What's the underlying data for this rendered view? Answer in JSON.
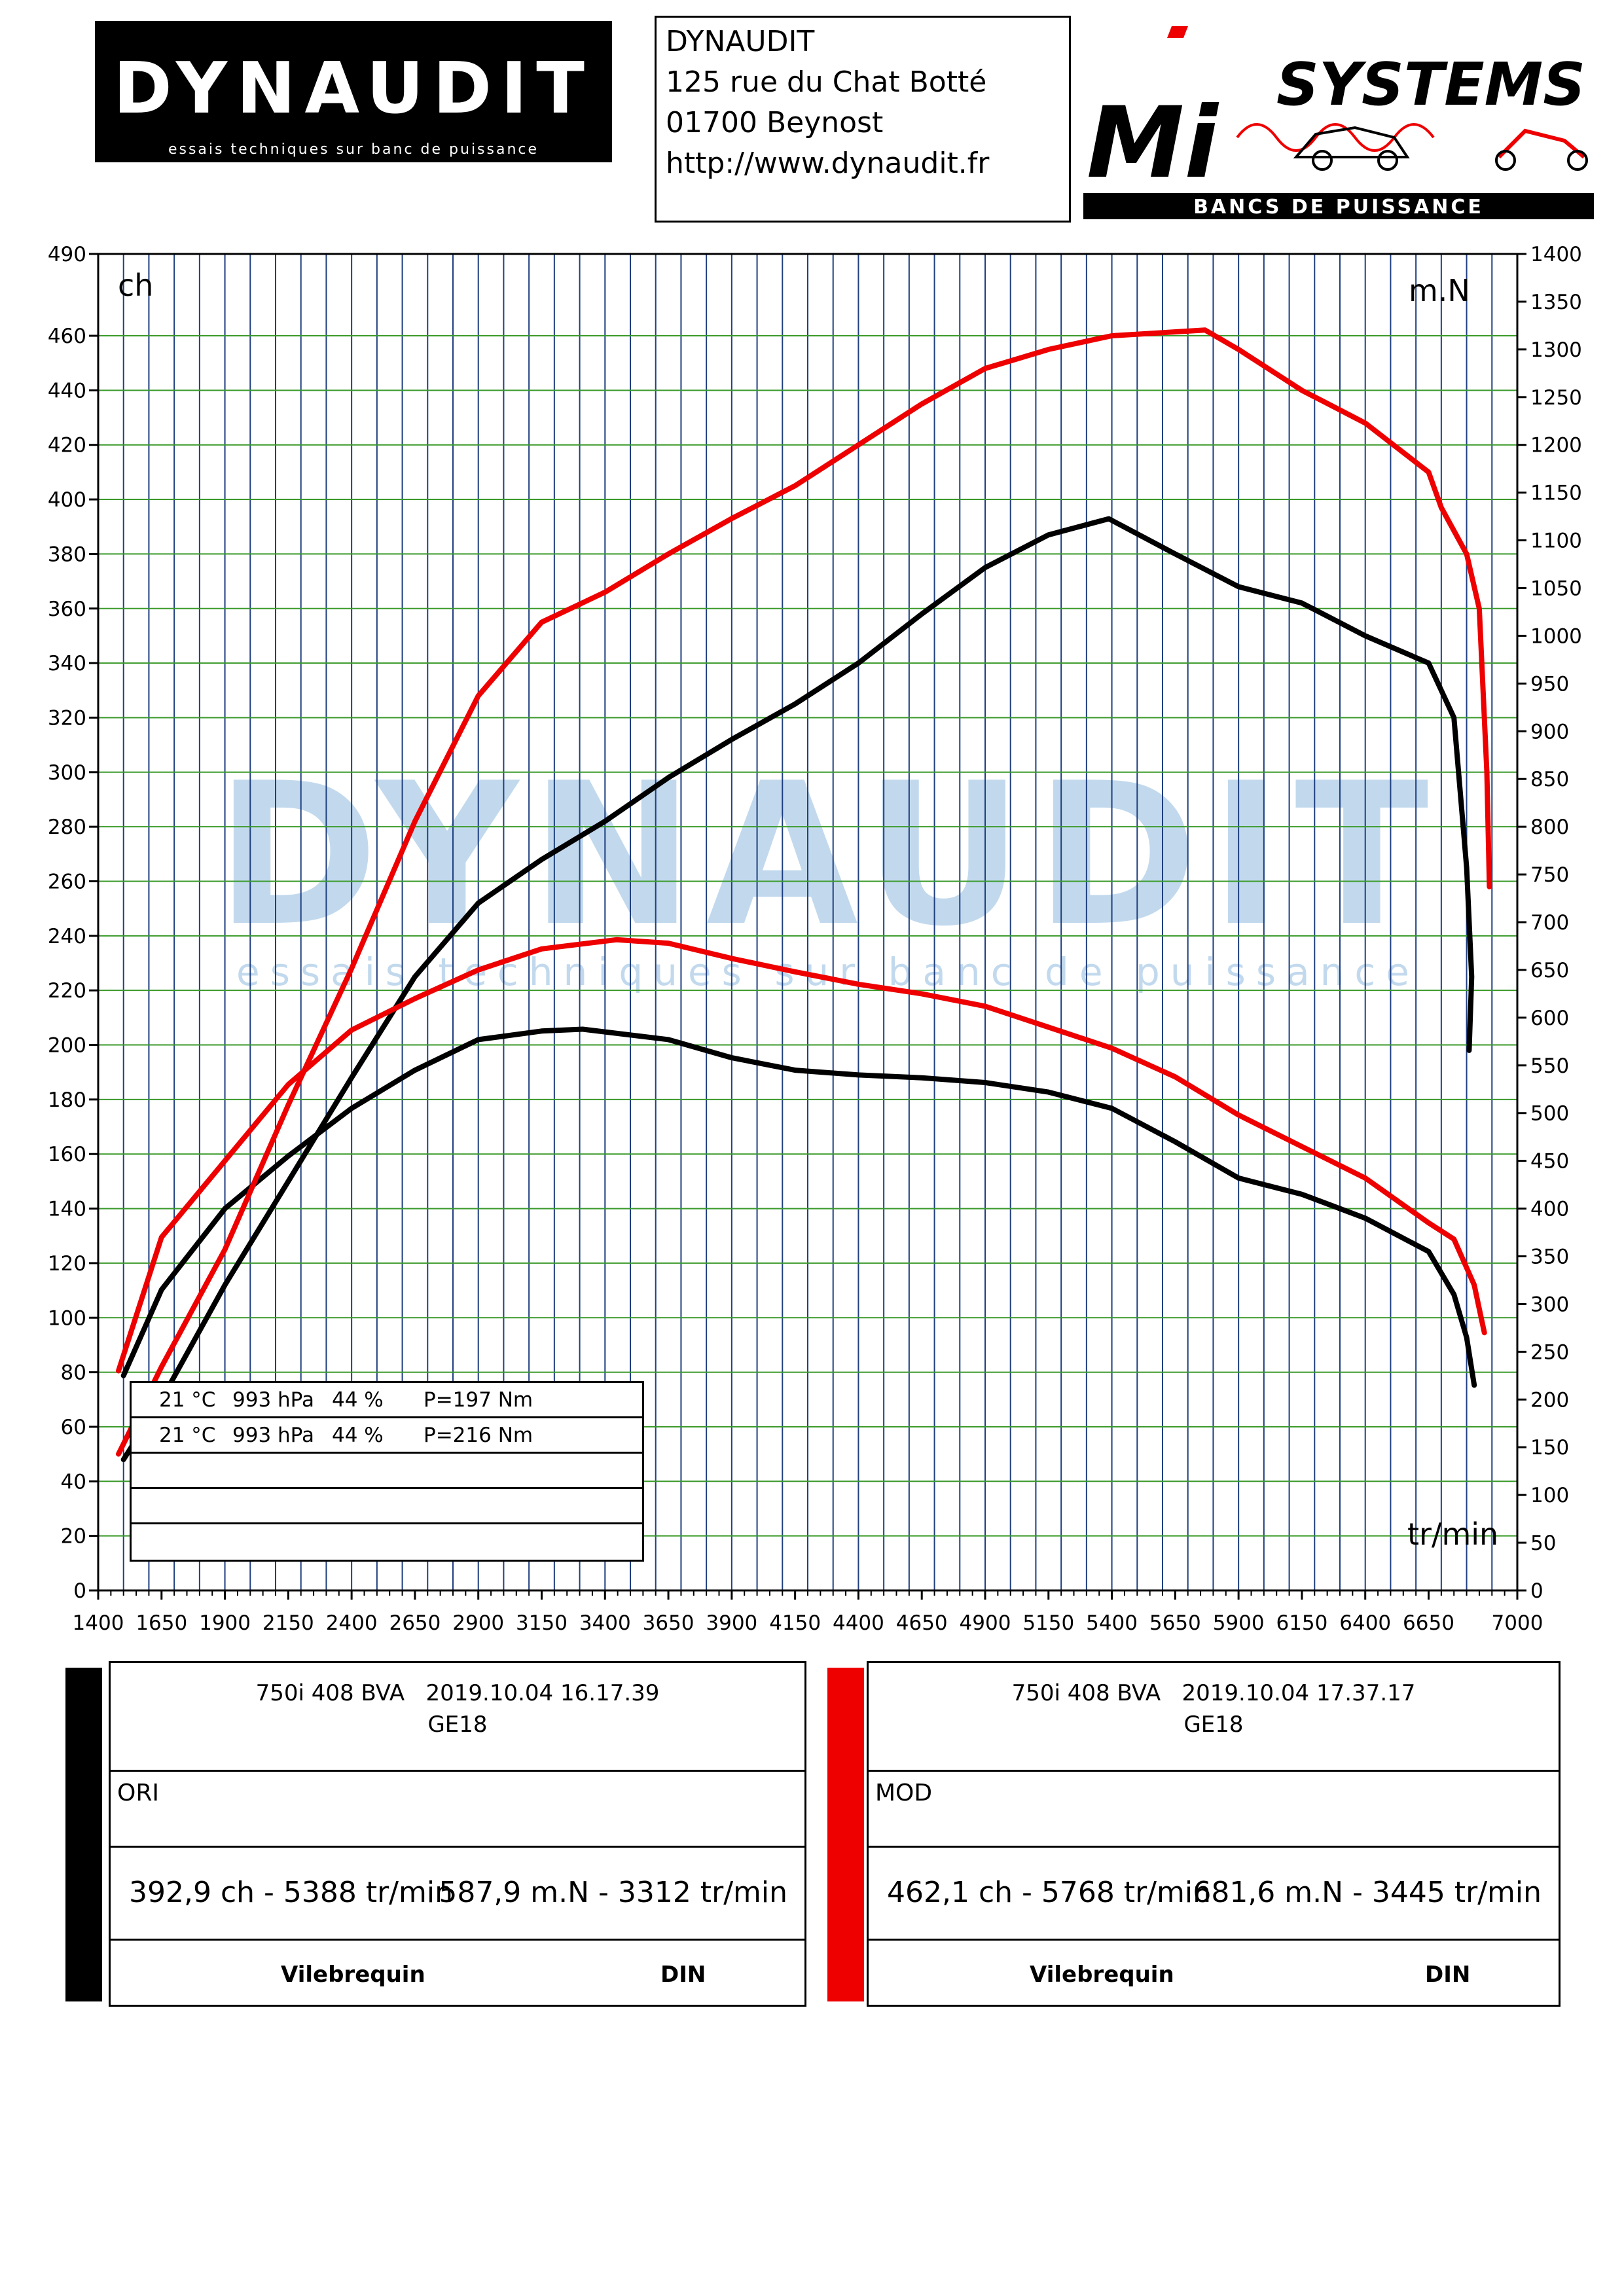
{
  "header": {
    "logo_left": {
      "brand": "DYNAUDIT",
      "tagline": "essais techniques sur banc de puissance"
    },
    "address": [
      "DYNAUDIT",
      "125 rue du Chat Botté",
      "01700 Beynost",
      "http://www.dynaudit.fr"
    ],
    "logo_right": {
      "brand": "SYSTEMS",
      "letters": "Mi",
      "tagline": "BANCS DE PUISSANCE"
    }
  },
  "watermark": {
    "brand": "DYNAUDIT",
    "tagline": "essais techniques sur banc de puissance"
  },
  "colors": {
    "ori": "#000000",
    "mod": "#ee0000",
    "grid_v": "#1f3f80",
    "grid_h": "#3a9a2a",
    "watermark": "#b8d3ea"
  },
  "chart_data": {
    "type": "line",
    "xlabel": "tr/min",
    "ylabel_left": "ch",
    "ylabel_right": "m.N",
    "xlim": [
      1400,
      7000
    ],
    "ylim_left": [
      0,
      490
    ],
    "ylim_right": [
      0,
      1400
    ],
    "x_ticks": [
      1400,
      1650,
      1900,
      2150,
      2400,
      2650,
      2900,
      3150,
      3400,
      3650,
      3900,
      4150,
      4400,
      4650,
      4900,
      5150,
      5400,
      5650,
      5900,
      6150,
      6400,
      6650,
      7000
    ],
    "y_left_ticks": [
      0,
      20,
      40,
      60,
      80,
      100,
      120,
      140,
      160,
      180,
      200,
      220,
      240,
      260,
      280,
      300,
      320,
      340,
      360,
      380,
      400,
      420,
      440,
      460,
      490
    ],
    "y_right_ticks": [
      0,
      50,
      100,
      150,
      200,
      250,
      300,
      350,
      400,
      450,
      500,
      550,
      600,
      650,
      700,
      750,
      800,
      850,
      900,
      950,
      1000,
      1050,
      1100,
      1150,
      1200,
      1250,
      1300,
      1350,
      1400
    ],
    "grid": true,
    "series": [
      {
        "name": "ORI",
        "quantity": "power",
        "axis": "left",
        "color": "#000000",
        "points": [
          [
            1500,
            48
          ],
          [
            1650,
            70
          ],
          [
            1900,
            112
          ],
          [
            2150,
            150
          ],
          [
            2400,
            188
          ],
          [
            2650,
            225
          ],
          [
            2900,
            252
          ],
          [
            3150,
            268
          ],
          [
            3400,
            282
          ],
          [
            3650,
            298
          ],
          [
            3900,
            312
          ],
          [
            4150,
            325
          ],
          [
            4400,
            340
          ],
          [
            4650,
            358
          ],
          [
            4900,
            375
          ],
          [
            5150,
            387
          ],
          [
            5388,
            392.9
          ],
          [
            5650,
            380
          ],
          [
            5900,
            368
          ],
          [
            6150,
            362
          ],
          [
            6400,
            350
          ],
          [
            6650,
            340
          ],
          [
            6750,
            320
          ],
          [
            6800,
            265
          ],
          [
            6820,
            225
          ],
          [
            6810,
            198
          ]
        ]
      },
      {
        "name": "ORI",
        "quantity": "torque",
        "axis": "right",
        "color": "#000000",
        "points": [
          [
            1500,
            225
          ],
          [
            1650,
            315
          ],
          [
            1900,
            400
          ],
          [
            2150,
            455
          ],
          [
            2400,
            505
          ],
          [
            2650,
            545
          ],
          [
            2900,
            577
          ],
          [
            3150,
            586
          ],
          [
            3312,
            587.9
          ],
          [
            3650,
            577
          ],
          [
            3900,
            558
          ],
          [
            4150,
            545
          ],
          [
            4400,
            540
          ],
          [
            4650,
            537
          ],
          [
            4900,
            532
          ],
          [
            5150,
            522
          ],
          [
            5400,
            505
          ],
          [
            5650,
            470
          ],
          [
            5900,
            432
          ],
          [
            6150,
            415
          ],
          [
            6400,
            390
          ],
          [
            6650,
            355
          ],
          [
            6750,
            310
          ],
          [
            6800,
            265
          ],
          [
            6830,
            215
          ]
        ]
      },
      {
        "name": "MOD",
        "quantity": "power",
        "axis": "left",
        "color": "#ee0000",
        "points": [
          [
            1480,
            50
          ],
          [
            1650,
            82
          ],
          [
            1900,
            125
          ],
          [
            2150,
            178
          ],
          [
            2400,
            228
          ],
          [
            2650,
            282
          ],
          [
            2900,
            328
          ],
          [
            3150,
            355
          ],
          [
            3400,
            366
          ],
          [
            3650,
            380
          ],
          [
            3900,
            393
          ],
          [
            4150,
            405
          ],
          [
            4400,
            420
          ],
          [
            4650,
            435
          ],
          [
            4900,
            448
          ],
          [
            5150,
            455
          ],
          [
            5400,
            460
          ],
          [
            5768,
            462.1
          ],
          [
            5900,
            455
          ],
          [
            6150,
            440
          ],
          [
            6400,
            428
          ],
          [
            6650,
            410
          ],
          [
            6700,
            397
          ],
          [
            6800,
            380
          ],
          [
            6850,
            360
          ],
          [
            6880,
            300
          ],
          [
            6890,
            258
          ]
        ]
      },
      {
        "name": "MOD",
        "quantity": "torque",
        "axis": "right",
        "color": "#ee0000",
        "points": [
          [
            1480,
            230
          ],
          [
            1650,
            370
          ],
          [
            1900,
            450
          ],
          [
            2150,
            530
          ],
          [
            2400,
            587
          ],
          [
            2650,
            620
          ],
          [
            2900,
            650
          ],
          [
            3150,
            672
          ],
          [
            3445,
            681.6
          ],
          [
            3650,
            678
          ],
          [
            3900,
            662
          ],
          [
            4150,
            648
          ],
          [
            4400,
            635
          ],
          [
            4650,
            625
          ],
          [
            4900,
            612
          ],
          [
            5150,
            590
          ],
          [
            5400,
            568
          ],
          [
            5650,
            538
          ],
          [
            5900,
            498
          ],
          [
            6150,
            465
          ],
          [
            6400,
            432
          ],
          [
            6650,
            385
          ],
          [
            6750,
            368
          ],
          [
            6830,
            320
          ],
          [
            6850,
            295
          ],
          [
            6870,
            270
          ]
        ]
      }
    ],
    "conditions": [
      {
        "temp": "21 °C",
        "pressure": "993 hPa",
        "humidity": "44 %",
        "loss": "P=197 Nm"
      },
      {
        "temp": "21 °C",
        "pressure": "993 hPa",
        "humidity": "44 %",
        "loss": "P=216 Nm"
      }
    ]
  },
  "runs": [
    {
      "id": "ori",
      "title": "750i 408 BVA   2019.10.04 16.17.39",
      "code": "GE18",
      "label": "ORI",
      "peak_power": "392,9 ch - 5388 tr/min",
      "peak_torque": "587,9 m.N - 3312 tr/min",
      "footer_a": "Vilebrequin",
      "footer_b": "DIN",
      "color": "#000000"
    },
    {
      "id": "mod",
      "title": "750i 408 BVA   2019.10.04 17.37.17",
      "code": "GE18",
      "label": "MOD",
      "peak_power": "462,1 ch - 5768 tr/min",
      "peak_torque": "681,6 m.N - 3445 tr/min",
      "footer_a": "Vilebrequin",
      "footer_b": "DIN",
      "color": "#ee0000"
    }
  ]
}
